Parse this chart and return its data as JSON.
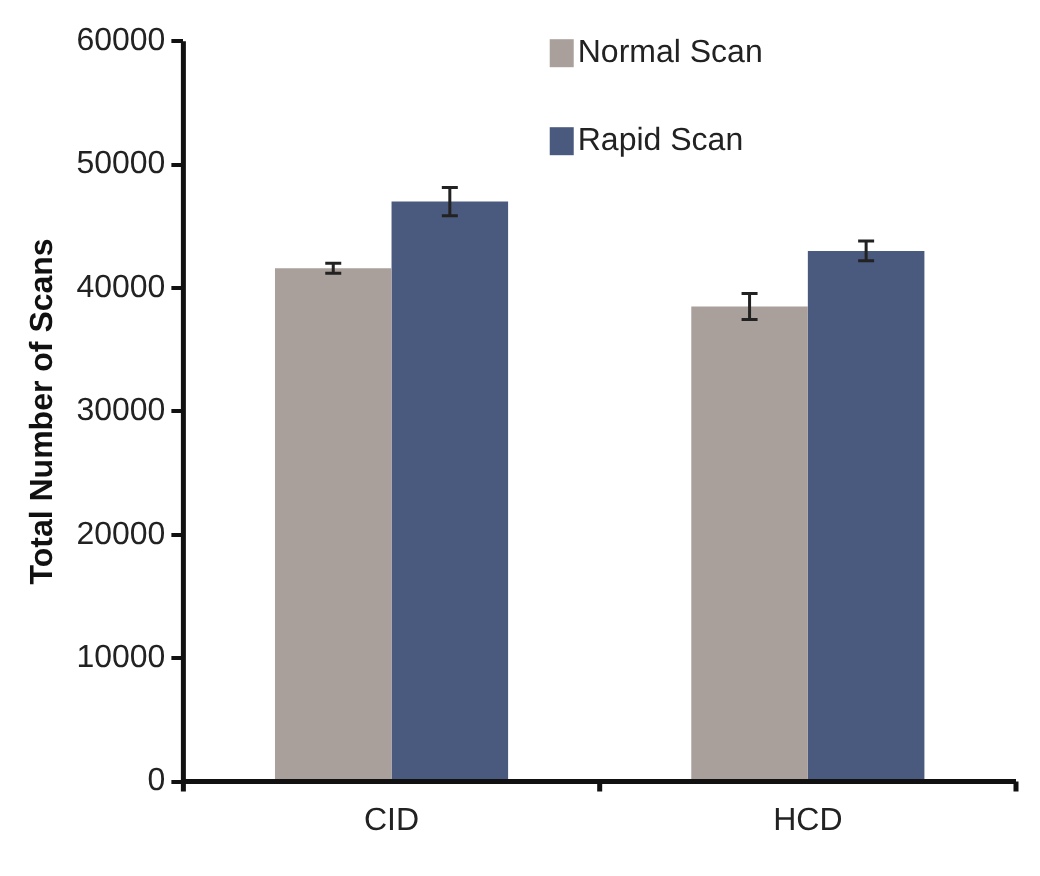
{
  "chart_data": {
    "type": "bar",
    "ylabel": "Total Number of Scans",
    "categories": [
      "CID",
      "HCD"
    ],
    "series": [
      {
        "name": "Normal Scan",
        "color": "#a9a09b",
        "values": [
          41600,
          38500
        ],
        "errors": [
          400,
          1050
        ]
      },
      {
        "name": "Rapid Scan",
        "color": "#4a5a7e",
        "values": [
          47000,
          43000
        ],
        "errors": [
          1150,
          800
        ]
      }
    ],
    "ylim": [
      0,
      60000
    ],
    "yticks": [
      0,
      10000,
      20000,
      30000,
      40000,
      50000,
      60000
    ],
    "grid": false,
    "legend": "top"
  }
}
